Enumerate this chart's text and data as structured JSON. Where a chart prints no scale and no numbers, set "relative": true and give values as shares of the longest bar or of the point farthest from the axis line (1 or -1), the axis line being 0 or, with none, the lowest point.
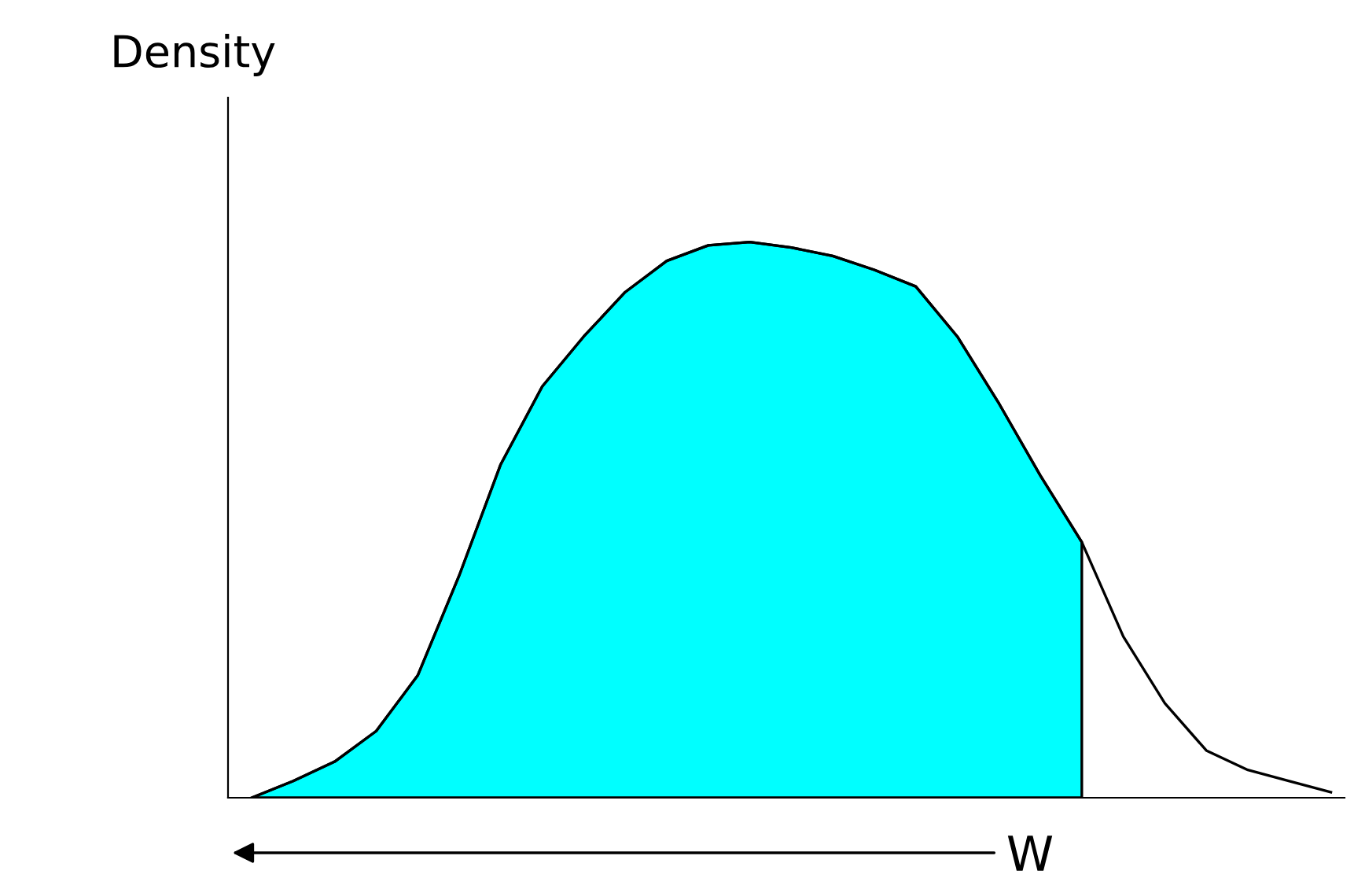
{
  "chart_data": {
    "type": "area",
    "relative": true,
    "ylabel": "Density",
    "xlabel": "W",
    "categories": [
      null,
      null,
      null,
      null,
      null,
      null,
      null,
      null,
      null,
      null,
      null,
      null,
      null,
      null,
      null,
      null,
      null,
      null,
      null,
      null,
      null,
      null,
      null,
      null,
      null,
      null,
      null
    ],
    "series": [
      {
        "color": "#00ffff",
        "values": [
          0,
          0.03,
          0.065,
          0.12,
          0.22,
          0.4,
          0.6,
          0.74,
          0.83,
          0.91,
          0.966,
          0.994,
          1.0,
          0.99,
          0.975,
          0.95,
          0.92,
          0.83,
          0.71,
          0.58,
          0.46,
          null,
          null,
          null,
          null,
          null,
          null
        ]
      },
      {
        "type": "line",
        "color": "#000000",
        "values": [
          0,
          0.03,
          0.065,
          0.12,
          0.22,
          0.4,
          0.6,
          0.74,
          0.83,
          0.91,
          0.966,
          0.994,
          1.0,
          0.99,
          0.975,
          0.95,
          0.92,
          0.83,
          0.71,
          0.58,
          0.46,
          0.29,
          0.17,
          0.085,
          0.05,
          0.03,
          0.01
        ]
      }
    ],
    "grid": false
  }
}
